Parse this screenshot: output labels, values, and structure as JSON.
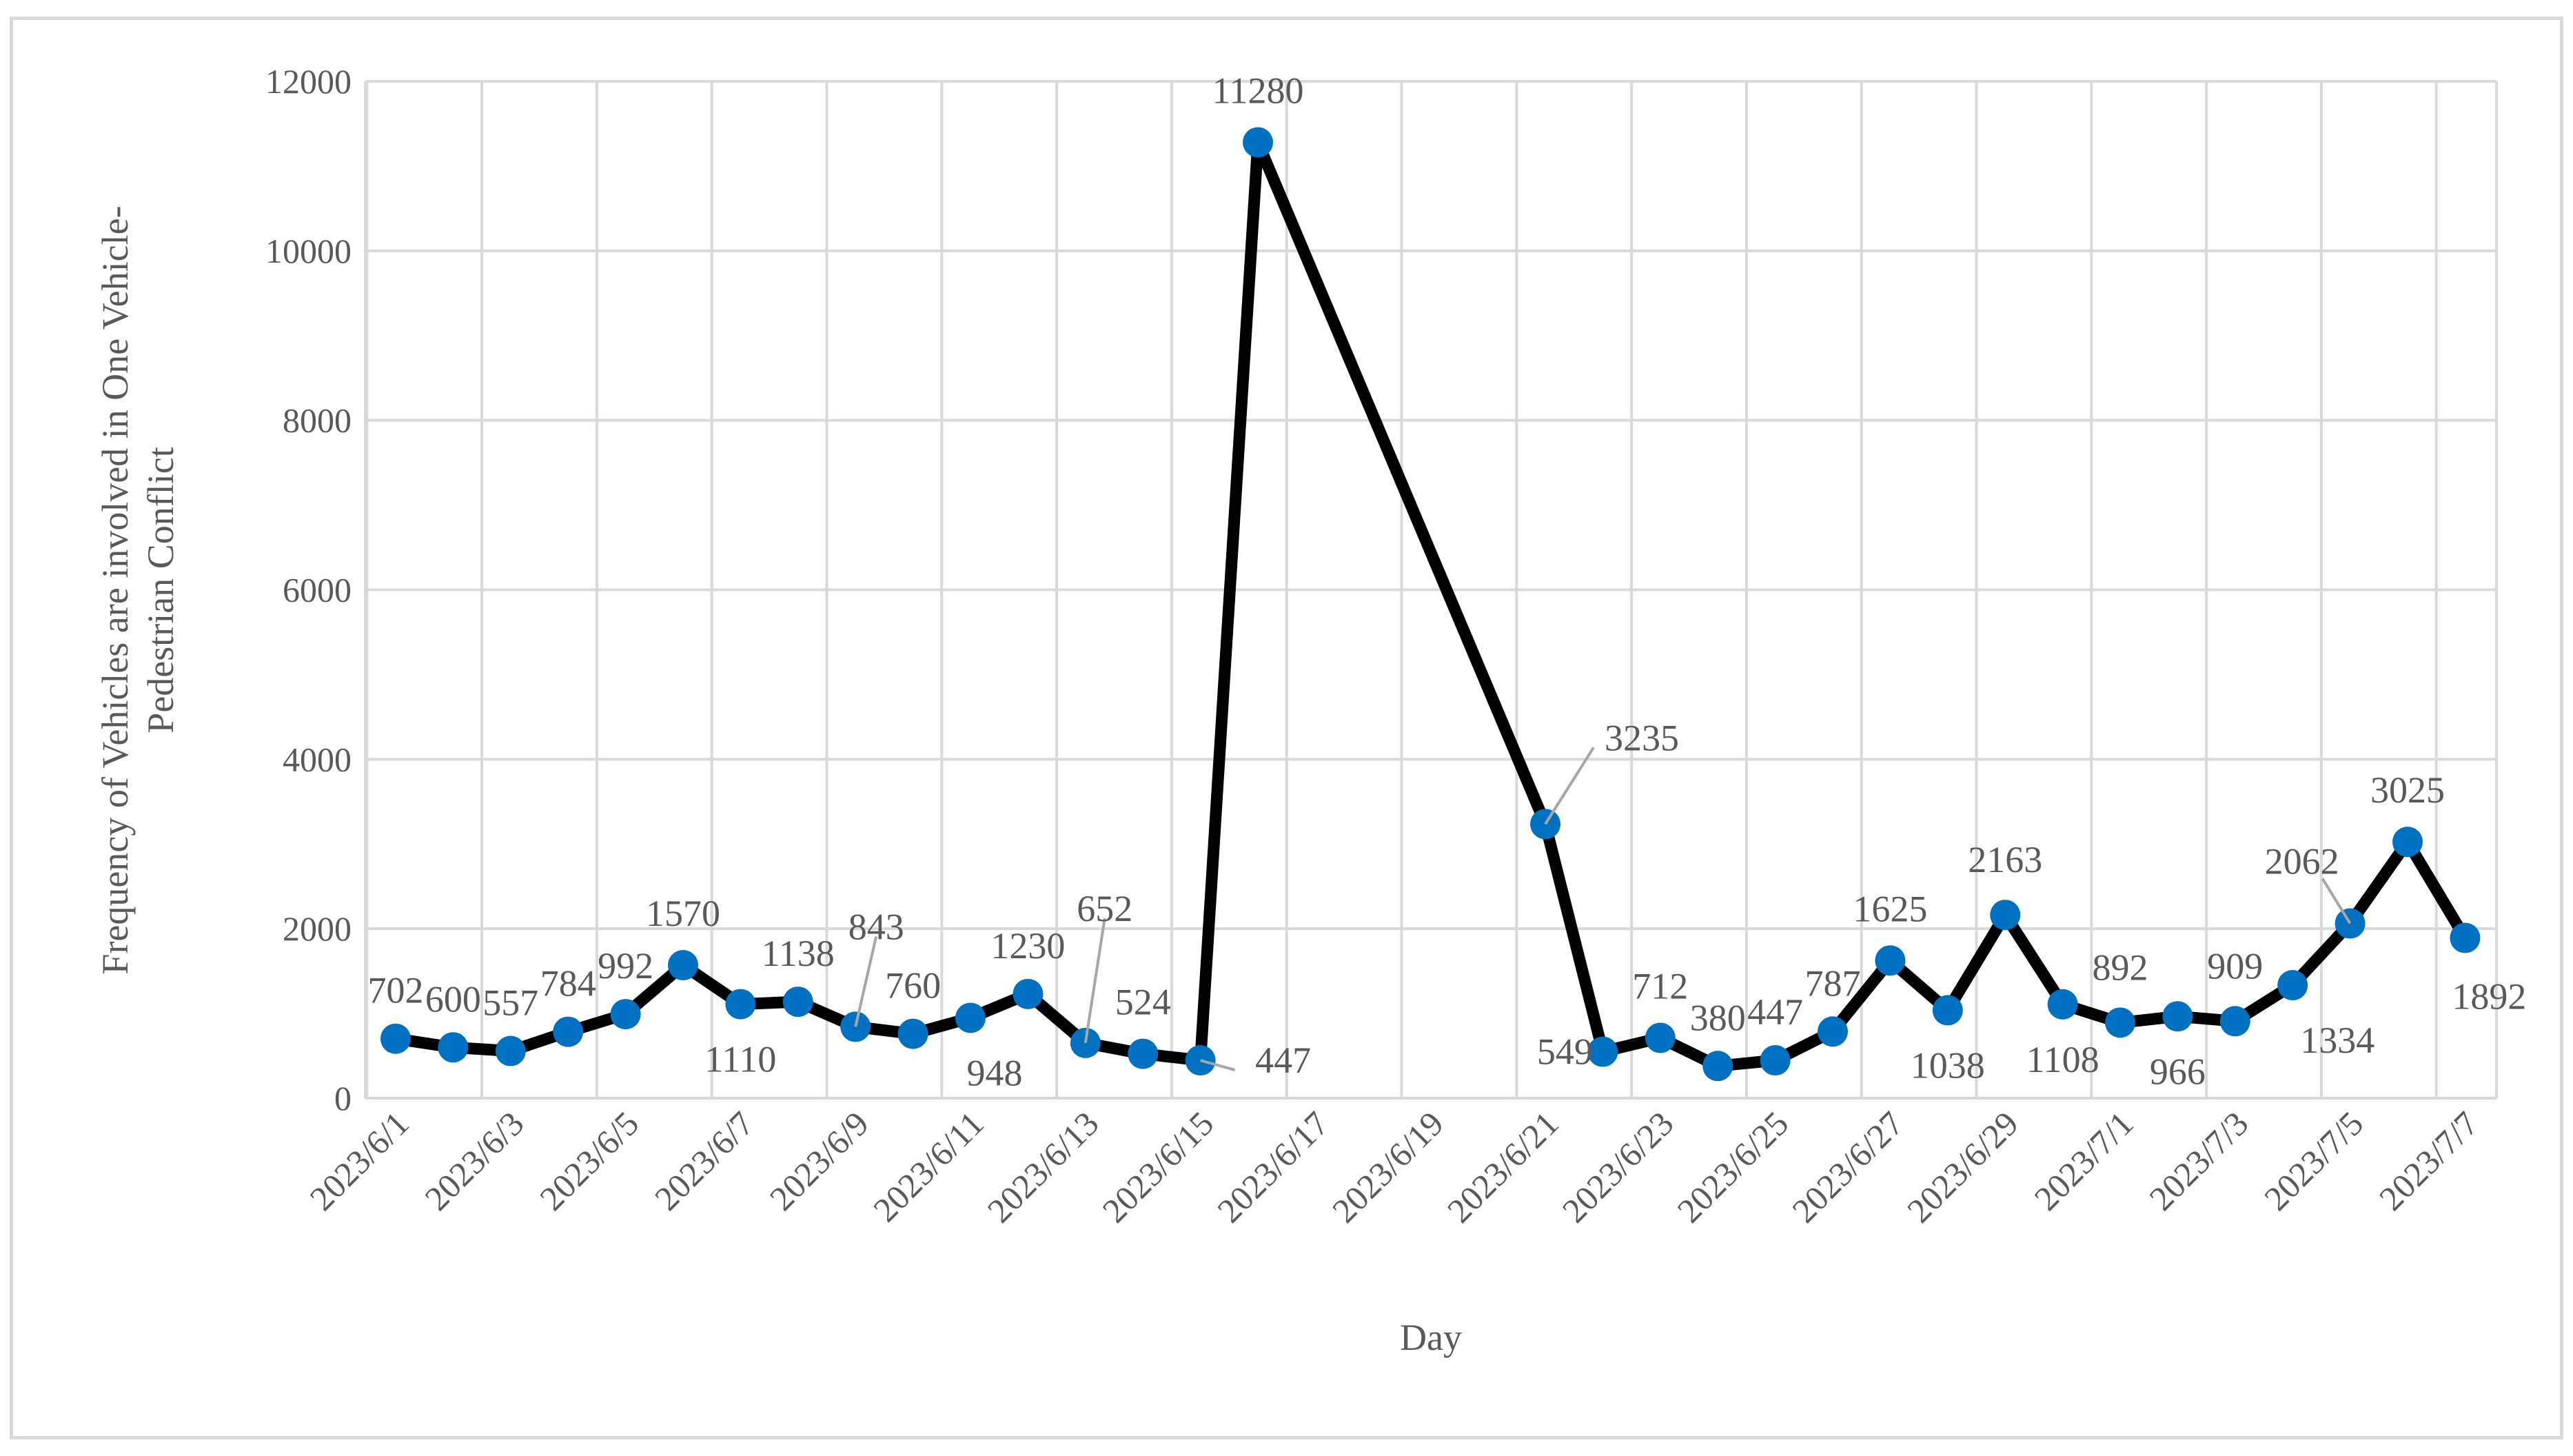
{
  "chart_data": {
    "type": "line",
    "xlabel": "Day",
    "ylabel_lines": [
      "Frequency of Vehicles are involved in One Vehicle-",
      "Pedestrian Conflict"
    ],
    "ylim": [
      0,
      12000
    ],
    "yticks": [
      0,
      2000,
      4000,
      6000,
      8000,
      10000,
      12000
    ],
    "ytick_labels": [
      "0",
      "2000",
      "4000",
      "6000",
      "8000",
      "10000",
      "12000"
    ],
    "xtick_labels": [
      "2023/6/1",
      "2023/6/3",
      "2023/6/5",
      "2023/6/7",
      "2023/6/9",
      "2023/6/11",
      "2023/6/13",
      "2023/6/15",
      "2023/6/17",
      "2023/6/19",
      "2023/6/21",
      "2023/6/23",
      "2023/6/25",
      "2023/6/27",
      "2023/6/29",
      "2023/7/1",
      "2023/7/3",
      "2023/7/5",
      "2023/7/7"
    ],
    "grid": true,
    "line_color": "#000000",
    "marker_color": "#0070C0",
    "points": [
      {
        "x": "2023/6/1",
        "y": 702
      },
      {
        "x": "2023/6/2",
        "y": 600
      },
      {
        "x": "2023/6/3",
        "y": 557
      },
      {
        "x": "2023/6/4",
        "y": 784
      },
      {
        "x": "2023/6/5",
        "y": 992
      },
      {
        "x": "2023/6/6",
        "y": 1570
      },
      {
        "x": "2023/6/7",
        "y": 1110
      },
      {
        "x": "2023/6/8",
        "y": 1138
      },
      {
        "x": "2023/6/9",
        "y": 843
      },
      {
        "x": "2023/6/10",
        "y": 760
      },
      {
        "x": "2023/6/11",
        "y": 948
      },
      {
        "x": "2023/6/12",
        "y": 1230
      },
      {
        "x": "2023/6/13",
        "y": 652
      },
      {
        "x": "2023/6/14",
        "y": 524
      },
      {
        "x": "2023/6/15",
        "y": 447
      },
      {
        "x": "2023/6/16",
        "y": 11280
      },
      {
        "x": "2023/6/21",
        "y": 3235
      },
      {
        "x": "2023/6/22",
        "y": 549
      },
      {
        "x": "2023/6/23",
        "y": 712
      },
      {
        "x": "2023/6/24",
        "y": 380
      },
      {
        "x": "2023/6/25",
        "y": 447
      },
      {
        "x": "2023/6/26",
        "y": 787
      },
      {
        "x": "2023/6/27",
        "y": 1625
      },
      {
        "x": "2023/6/28",
        "y": 1038
      },
      {
        "x": "2023/6/29",
        "y": 2163
      },
      {
        "x": "2023/6/30",
        "y": 1108
      },
      {
        "x": "2023/7/1",
        "y": 892
      },
      {
        "x": "2023/7/2",
        "y": 966
      },
      {
        "x": "2023/7/3",
        "y": 909
      },
      {
        "x": "2023/7/4",
        "y": 1334
      },
      {
        "x": "2023/7/5",
        "y": 2062
      },
      {
        "x": "2023/7/6",
        "y": 3025
      },
      {
        "x": "2023/7/7",
        "y": 1892
      }
    ],
    "data_labels": [
      "702",
      "600",
      "557",
      "784",
      "992",
      "1570",
      "1110",
      "1138",
      "843",
      "760",
      "948",
      "1230",
      "652",
      "524",
      "447",
      "11280",
      "3235",
      "549",
      "712",
      "380",
      "447",
      "787",
      "1625",
      "1038",
      "2163",
      "1108",
      "892",
      "966",
      "909",
      "1334",
      "2062",
      "3025",
      "1892"
    ]
  }
}
